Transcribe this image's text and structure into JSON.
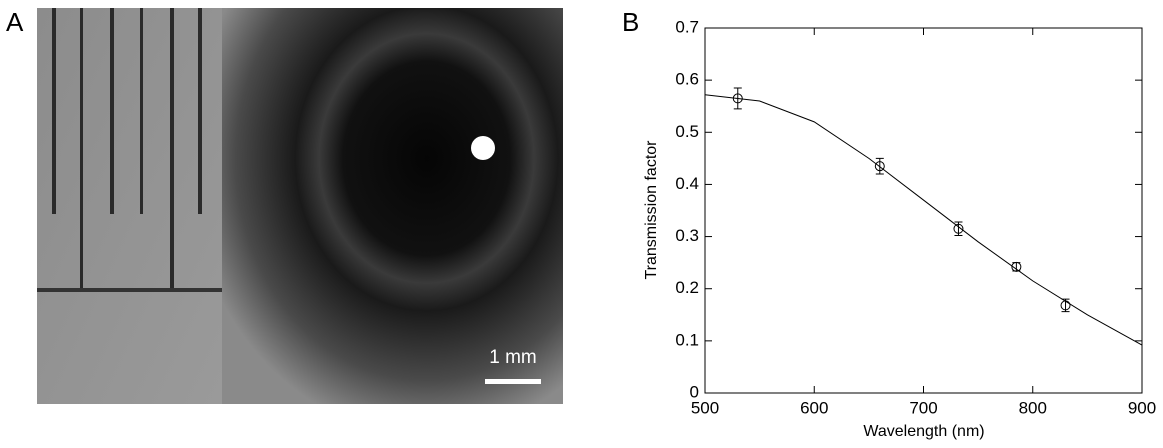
{
  "panel_labels": [
    "A",
    "B"
  ],
  "scale_bar": "1 mm",
  "chart_data": {
    "type": "scatter",
    "xlabel": "Wavelength (nm)",
    "ylabel": "Transmission factor",
    "xlim": [
      500,
      900
    ],
    "ylim": [
      0,
      0.7
    ],
    "xticks": [
      500,
      600,
      700,
      800,
      900
    ],
    "yticks": [
      0,
      0.1,
      0.2,
      0.3,
      0.4,
      0.5,
      0.6,
      0.7
    ],
    "points": {
      "x": [
        530,
        660,
        732,
        785,
        830
      ],
      "values": [
        0.565,
        0.435,
        0.315,
        0.242,
        0.168
      ],
      "errors": [
        0.02,
        0.015,
        0.013,
        0.008,
        0.012
      ],
      "color": "#000000"
    },
    "fit": {
      "x": [
        500,
        550,
        600,
        650,
        700,
        750,
        800,
        850,
        900
      ],
      "values": [
        0.572,
        0.56,
        0.52,
        0.45,
        0.37,
        0.29,
        0.215,
        0.15,
        0.092
      ],
      "color": "#000000"
    }
  }
}
